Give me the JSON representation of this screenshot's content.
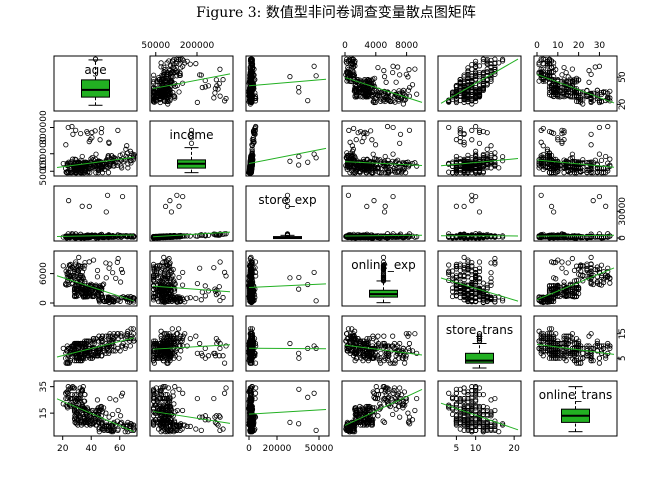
{
  "figure_title": "Figure 3: 数值型非问卷调查变量散点图矩阵",
  "chart_data": {
    "type": "scatter-matrix",
    "variables": [
      "age",
      "income",
      "store_exp",
      "online_exp",
      "store_trans",
      "online_trans"
    ],
    "ranges": {
      "age": [
        16,
        70
      ],
      "income": [
        40000,
        320000
      ],
      "store_exp": [
        0,
        55000
      ],
      "online_exp": [
        0,
        10000
      ],
      "store_trans": [
        1,
        21
      ],
      "online_trans": [
        0,
        37
      ]
    },
    "ticks": {
      "age": [
        "20",
        "40",
        "60"
      ],
      "income": [
        "50000",
        "200000"
      ],
      "income_left": [
        "50000",
        "150000",
        "300000"
      ],
      "store_exp": [
        "0",
        "20000",
        "50000"
      ],
      "store_exp_right": [
        "0",
        "30000"
      ],
      "online_exp": [
        "0",
        "4000",
        "8000"
      ],
      "online_exp_left": [
        "0",
        "6000"
      ],
      "store_trans": [
        "5",
        "10",
        "20"
      ],
      "store_trans_right": [
        "5",
        "15"
      ],
      "online_trans": [
        "0",
        "10",
        "20",
        "30"
      ],
      "online_trans_left": [
        "15",
        "35"
      ],
      "age_right": [
        "20",
        "50"
      ]
    },
    "tick_values": {
      "age": [
        20,
        40,
        60
      ],
      "income": [
        50000,
        200000
      ],
      "income_left": [
        50000,
        150000,
        300000
      ],
      "store_exp": [
        0,
        20000,
        50000
      ],
      "store_exp_right": [
        0,
        30000
      ],
      "online_exp": [
        0,
        4000,
        8000
      ],
      "online_exp_left": [
        0,
        6000
      ],
      "store_trans": [
        5,
        10,
        20
      ],
      "store_trans_right": [
        5,
        15
      ],
      "online_trans": [
        0,
        10,
        20,
        30
      ],
      "online_trans_left": [
        15,
        35
      ],
      "age_right": [
        20,
        50
      ]
    },
    "boxplots": {
      "age": {
        "whisker_low": 19,
        "q1": 28,
        "median": 36,
        "q3": 47,
        "whisker_high": 69
      },
      "income": {
        "whisker_low": 42000,
        "q1": 68000,
        "median": 93000,
        "q3": 115000,
        "whisker_high": 185000
      },
      "store_exp": {
        "whisker_low": 150,
        "q1": 205,
        "median": 330,
        "q3": 1600,
        "whisker_high": 3000
      },
      "online_exp": {
        "whisker_low": 65,
        "q1": 1200,
        "median": 1800,
        "q3": 2600,
        "whisker_high": 4500
      },
      "store_trans": {
        "whisker_low": 1,
        "q1": 3,
        "median": 4,
        "q3": 7,
        "whisker_high": 11
      },
      "online_trans": {
        "whisker_low": 1,
        "q1": 8,
        "median": 13,
        "q3": 18,
        "whisker_high": 35
      }
    },
    "colors": {
      "box_fill": "#22b022",
      "fit_line": "#22b022",
      "points": "#000000"
    },
    "grid": false
  }
}
